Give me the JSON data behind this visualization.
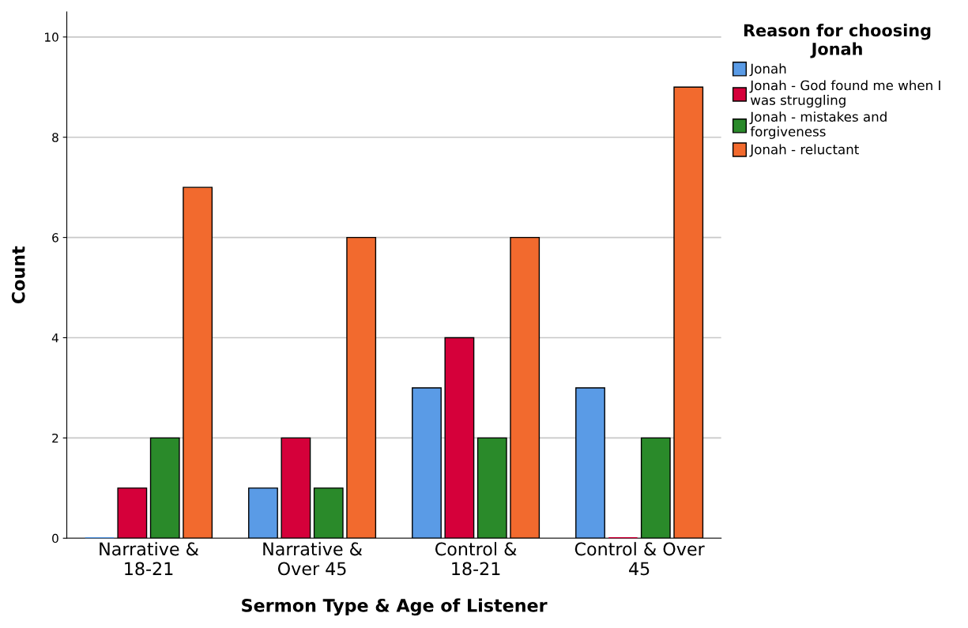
{
  "chart_data": {
    "type": "bar",
    "xlabel": "Sermon Type & Age of Listener",
    "ylabel": "Count",
    "legend_title": "Reason for choosing Jonah",
    "categories": [
      "Narrative & 18-21",
      "Narrative & Over 45",
      "Control & 18-21",
      "Control & Over 45"
    ],
    "series": [
      {
        "name": "Jonah",
        "color": "#5a9be6",
        "values": [
          0,
          1,
          3,
          3
        ]
      },
      {
        "name": "Jonah - God found me when I was struggling",
        "color": "#d5003a",
        "values": [
          1,
          2,
          4,
          0
        ]
      },
      {
        "name": "Jonah - mistakes and forgiveness",
        "color": "#2a8a2a",
        "values": [
          2,
          1,
          2,
          2
        ]
      },
      {
        "name": "Jonah - reluctant",
        "color": "#f26a2e",
        "values": [
          7,
          6,
          6,
          9
        ]
      }
    ],
    "ylim": [
      0,
      10.5
    ],
    "yticks": [
      0,
      2,
      4,
      6,
      8,
      10
    ],
    "grid": "y",
    "legend": "right"
  }
}
